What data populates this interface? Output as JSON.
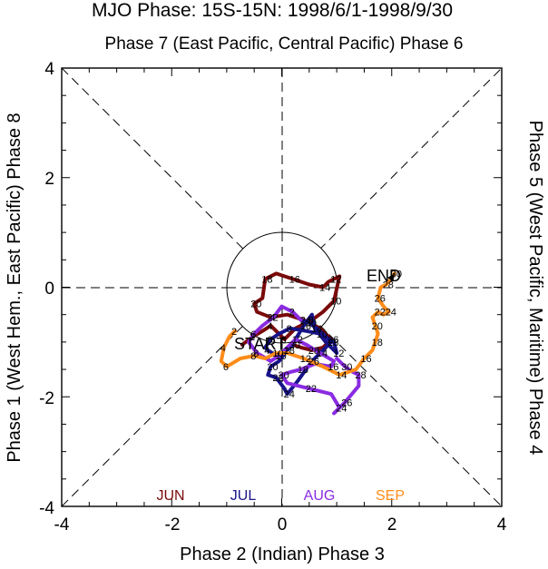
{
  "chart_data": {
    "type": "line",
    "title": "MJO Phase: 15S-15N: 1998/6/1-1998/9/30",
    "subtitle": "Phase 7 (East Pacific, Central Pacific) Phase 6",
    "xlabel": "Phase 2 (Indian) Phase 3",
    "ylabel_left": "Phase 1 (West Hem., East Pacific) Phase 8",
    "ylabel_right": "Phase 5 (West Pacific, Maritime) Phase 4",
    "xlim": [
      -4,
      4
    ],
    "ylim": [
      -4,
      4
    ],
    "xticks": [
      "-4",
      "-2",
      "0",
      "2",
      "4"
    ],
    "yticks": [
      "4",
      "2",
      "0",
      "-2",
      "-4"
    ],
    "start_label": "START",
    "end_label": "END",
    "legend": [
      "JUN",
      "JUL",
      "AUG",
      "SEP"
    ],
    "colors": {
      "JUN": "#7a0a0a",
      "JUL": "#17138a",
      "AUG": "#8a2be2",
      "SEP": "#ff8c1a"
    },
    "series": [
      {
        "name": "JUN",
        "color": "#7a0a0a",
        "x": [
          -0.72,
          -0.52,
          -0.35,
          -0.2,
          -0.05,
          0.05,
          0.25,
          0.55,
          0.75,
          0.95,
          1.05,
          0.95,
          0.85,
          0.75,
          0.5,
          0.2,
          -0.1,
          -0.3,
          -0.35,
          -0.5,
          -0.45,
          -0.2,
          0.1,
          0.4,
          0.7,
          0.9,
          0.75,
          0.55,
          0.35,
          0.2
        ],
        "y": [
          -1.05,
          -0.9,
          -0.8,
          -0.7,
          -0.85,
          -0.95,
          -0.75,
          -0.6,
          -0.45,
          -0.25,
          0.2,
          0.15,
          0.1,
          0.0,
          0.05,
          0.15,
          0.25,
          0.15,
          -0.2,
          -0.3,
          -0.45,
          -0.55,
          -0.5,
          -0.6,
          -0.75,
          -0.95,
          -1.1,
          -1.15,
          -1.1,
          -1.05
        ]
      },
      {
        "name": "JUL",
        "color": "#17138a",
        "x": [
          0.2,
          0.1,
          -0.1,
          -0.25,
          -0.3,
          -0.2,
          -0.05,
          0.15,
          0.45,
          0.7,
          0.95,
          1.0,
          0.8,
          0.6,
          0.55,
          0.4,
          0.25,
          0.1,
          -0.05,
          -0.2,
          -0.25,
          -0.1,
          0.05,
          0.1,
          0.3,
          0.55,
          0.75,
          0.9,
          0.7,
          0.5,
          0.35
        ],
        "y": [
          -1.05,
          -1.15,
          -1.25,
          -1.15,
          -1.1,
          -0.95,
          -0.85,
          -0.75,
          -0.8,
          -0.85,
          -1.0,
          -1.2,
          -1.0,
          -0.75,
          -0.5,
          -0.7,
          -0.95,
          -1.15,
          -1.35,
          -1.45,
          -1.6,
          -1.65,
          -1.85,
          -1.95,
          -1.7,
          -1.35,
          -1.15,
          -1.0,
          -0.8,
          -0.65,
          -0.6
        ]
      },
      {
        "name": "JUL_link",
        "color": "#17138a",
        "x": [],
        "y": []
      },
      {
        "name": "AUG",
        "color": "#8a2be2",
        "x": [
          0.35,
          0.2,
          0.0,
          -0.15,
          -0.35,
          -0.5,
          -0.6,
          -0.45,
          -0.2,
          -0.05,
          0.1,
          0.25,
          0.45,
          0.7,
          0.95,
          0.9,
          0.6,
          0.35,
          0.15,
          0.0,
          0.1,
          0.5,
          0.9,
          1.05,
          0.95,
          1.15,
          1.4,
          1.4,
          1.3,
          1.15,
          1.0
        ],
        "y": [
          -0.6,
          -0.45,
          -0.35,
          -0.55,
          -0.7,
          -0.85,
          -1.0,
          -1.2,
          -1.35,
          -1.25,
          -1.1,
          -0.95,
          -1.05,
          -1.2,
          -1.35,
          -1.45,
          -1.4,
          -1.5,
          -1.55,
          -1.6,
          -1.75,
          -1.85,
          -1.95,
          -2.2,
          -2.3,
          -2.1,
          -1.8,
          -1.6,
          -1.55,
          -1.45,
          -1.3
        ]
      },
      {
        "name": "SEP",
        "color": "#ff8c1a",
        "x": [
          -0.9,
          -0.85,
          -0.95,
          -1.05,
          -1.1,
          -1.0,
          -0.75,
          -0.5,
          -0.3,
          -0.1,
          0.1,
          0.4,
          0.75,
          1.05,
          1.35,
          1.5,
          1.65,
          1.7,
          1.75,
          1.7,
          1.65,
          1.75,
          1.85,
          1.95,
          1.85,
          1.75,
          1.8,
          1.9,
          1.95,
          2.05
        ],
        "y": [
          -0.85,
          -0.8,
          -0.9,
          -1.1,
          -1.35,
          -1.45,
          -1.3,
          -1.25,
          -1.3,
          -1.2,
          -1.2,
          -1.3,
          -1.45,
          -1.6,
          -1.5,
          -1.3,
          -1.15,
          -1.0,
          -0.85,
          -0.7,
          -0.55,
          -0.45,
          -0.5,
          -0.45,
          -0.35,
          -0.2,
          0.0,
          0.05,
          0.1,
          0.25
        ]
      }
    ]
  }
}
